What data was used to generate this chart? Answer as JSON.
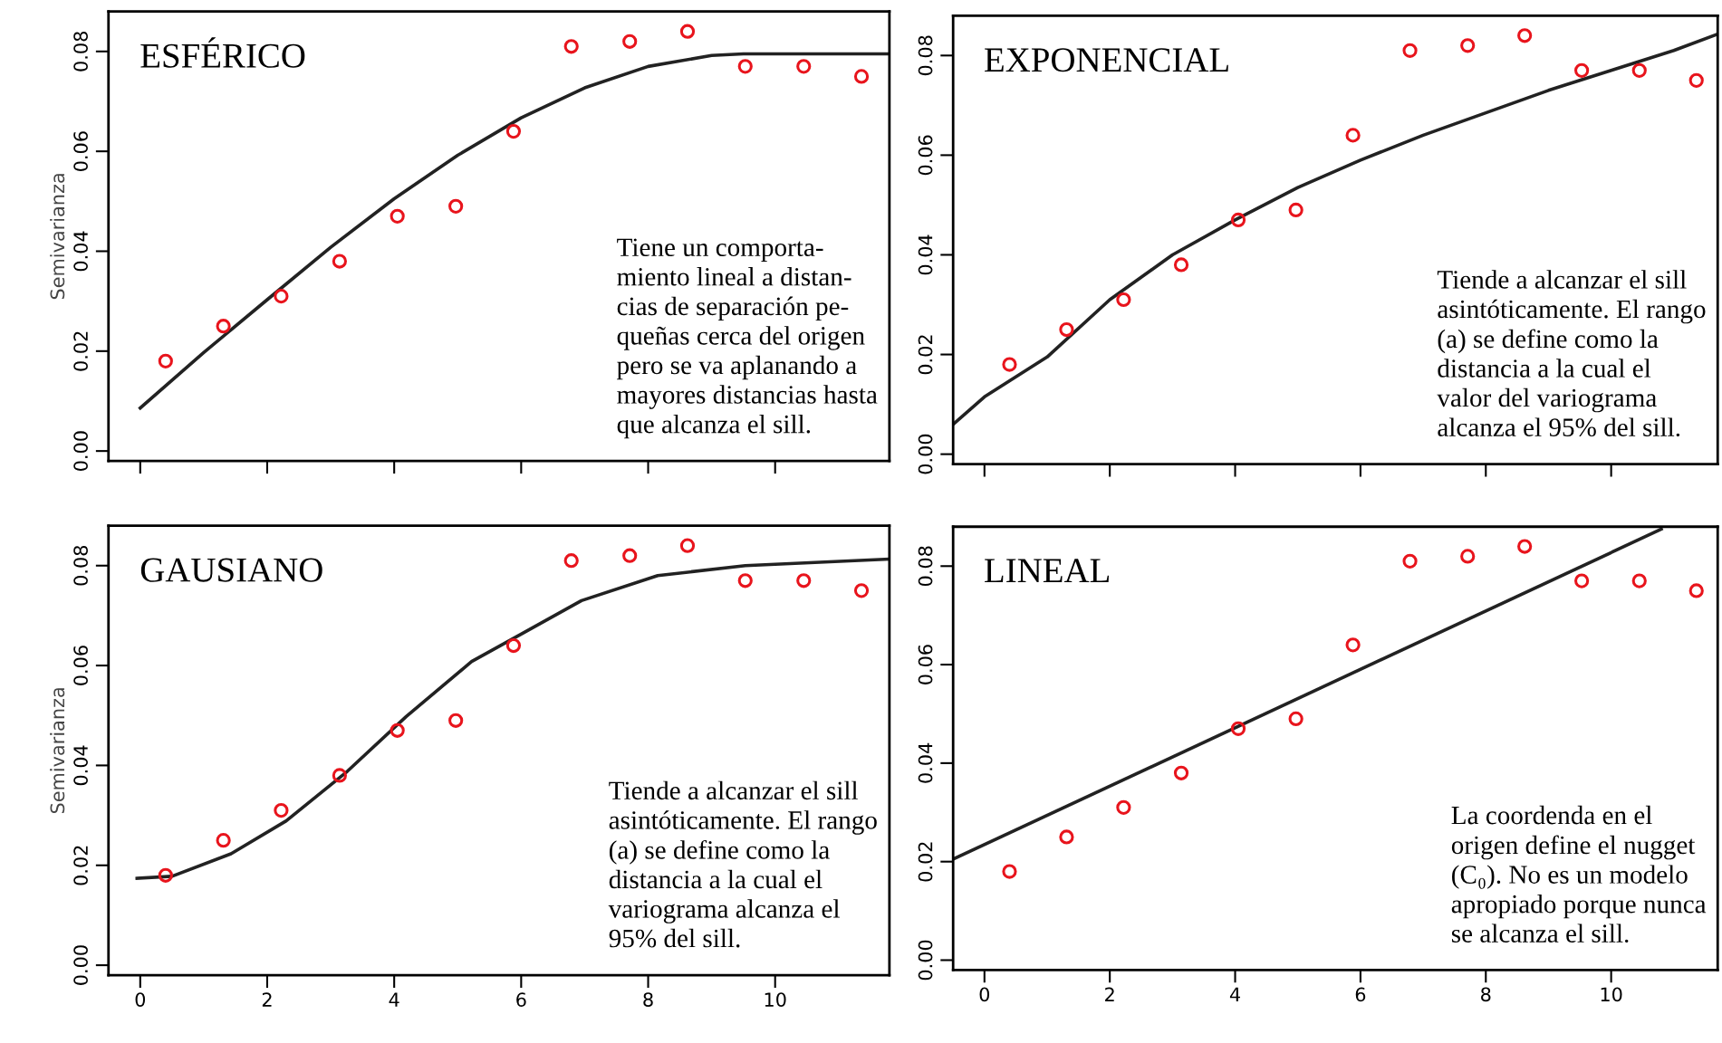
{
  "chart_data": [
    {
      "type": "line",
      "title": "ESFÉRICO",
      "ylabel": "Semivarianza",
      "xlim": [
        -0.5,
        11.8
      ],
      "ylim": [
        -0.002,
        0.088
      ],
      "xticks": [
        0,
        2,
        4,
        6,
        8,
        10
      ],
      "yticks": [
        {
          "value": 0,
          "label": "0.00"
        },
        {
          "value": 0.02,
          "label": "0.02"
        },
        {
          "value": 0.04,
          "label": "0.04"
        },
        {
          "value": 0.06,
          "label": "0.06"
        },
        {
          "value": 0.08,
          "label": "0.08"
        }
      ],
      "tick_labels": "y",
      "annotations": [
        "Tiene un comporta-\nmiento lineal a distan-\ncias de separación pe-\nqueñas cerca del origen\npero se va aplanando a\nmayores distancias hasta\nque alcanza el sill."
      ],
      "series": [
        {
          "type": "scatter",
          "color": "#e8141c",
          "x": [
            0.4,
            1.31,
            2.22,
            3.14,
            4.05,
            4.97,
            5.88,
            6.79,
            7.71,
            8.62,
            9.53,
            10.45,
            11.36
          ],
          "values": [
            0.018,
            0.025,
            0.031,
            0.038,
            0.047,
            0.049,
            0.064,
            0.081,
            0.082,
            0.084,
            0.077,
            0.077,
            0.075
          ]
        },
        {
          "color": "#222222",
          "x": [
            0,
            1,
            2,
            3,
            4,
            5,
            6,
            7,
            8,
            9,
            9.5,
            11.8
          ],
          "values": [
            0.0086,
            0.0197,
            0.0303,
            0.0408,
            0.0505,
            0.0592,
            0.0667,
            0.0727,
            0.077,
            0.0792,
            0.0795,
            0.0795
          ]
        }
      ]
    },
    {
      "type": "line",
      "title": "EXPONENCIAL",
      "xlim": [
        -0.5,
        11.7
      ],
      "ylim": [
        -0.002,
        0.088
      ],
      "xticks": [
        0,
        2,
        4,
        6,
        8,
        10
      ],
      "yticks": [
        {
          "value": 0,
          "label": "0.00"
        },
        {
          "value": 0.02,
          "label": "0.02"
        },
        {
          "value": 0.04,
          "label": "0.04"
        },
        {
          "value": 0.06,
          "label": "0.06"
        },
        {
          "value": 0.08,
          "label": "0.08"
        }
      ],
      "tick_labels": "y",
      "annotations": [
        "Tiende a alcanzar el sill\nasintóticamente. El rango\n(a) se define como la\ndistancia a la cual el\nvalor del variograma\nalcanza el 95% del sill."
      ],
      "series": [
        {
          "type": "scatter",
          "color": "#e8141c",
          "x": [
            0.4,
            1.31,
            2.22,
            3.14,
            4.05,
            4.97,
            5.88,
            6.79,
            7.71,
            8.62,
            9.53,
            10.45,
            11.36
          ],
          "values": [
            0.018,
            0.025,
            0.031,
            0.038,
            0.047,
            0.049,
            0.064,
            0.081,
            0.082,
            0.084,
            0.077,
            0.077,
            0.075
          ]
        },
        {
          "color": "#222222",
          "x": [
            -0.5,
            0,
            1,
            2,
            3,
            4,
            5,
            6,
            7,
            8,
            9,
            10,
            11,
            11.7
          ],
          "values": [
            0.006,
            0.0115,
            0.0195,
            0.031,
            0.04,
            0.047,
            0.0535,
            0.059,
            0.064,
            0.0685,
            0.073,
            0.077,
            0.081,
            0.0843
          ]
        }
      ]
    },
    {
      "type": "line",
      "title": "GAUSIANO",
      "ylabel": "Semivarianza",
      "xlim": [
        -0.5,
        11.8
      ],
      "ylim": [
        -0.002,
        0.088
      ],
      "xticks": [
        0,
        2,
        4,
        6,
        8,
        10
      ],
      "yticks": [
        {
          "value": 0,
          "label": "0.00"
        },
        {
          "value": 0.02,
          "label": "0.02"
        },
        {
          "value": 0.04,
          "label": "0.04"
        },
        {
          "value": 0.06,
          "label": "0.06"
        },
        {
          "value": 0.08,
          "label": "0.08"
        }
      ],
      "annotations": [
        "Tiende a alcanzar el sill\nasintóticamente. El rango\n(a) se define como la\ndistancia a la cual el\nvariograma alcanza el\n95% del sill."
      ],
      "series": [
        {
          "type": "scatter",
          "color": "#e8141c",
          "x": [
            0.4,
            1.31,
            2.22,
            3.14,
            4.05,
            4.97,
            5.88,
            6.79,
            7.71,
            8.62,
            9.53,
            10.45,
            11.36
          ],
          "values": [
            0.018,
            0.025,
            0.031,
            0.038,
            0.047,
            0.049,
            0.064,
            0.081,
            0.082,
            0.084,
            0.077,
            0.077,
            0.075
          ]
        },
        {
          "color": "#222222",
          "x": [
            -0.05,
            0.5,
            1.43,
            2.3,
            3.26,
            4.19,
            5.22,
            6,
            6.95,
            8.15,
            9.53,
            11.8
          ],
          "values": [
            0.0174,
            0.0178,
            0.0223,
            0.0289,
            0.0388,
            0.0498,
            0.0608,
            0.0663,
            0.073,
            0.078,
            0.08,
            0.0813
          ]
        }
      ]
    },
    {
      "type": "line",
      "title": "LINEAL",
      "xlim": [
        -0.5,
        11.7
      ],
      "ylim": [
        -0.002,
        0.088
      ],
      "xticks": [
        0,
        2,
        4,
        6,
        8,
        10
      ],
      "yticks": [
        {
          "value": 0,
          "label": "0.00"
        },
        {
          "value": 0.02,
          "label": "0.02"
        },
        {
          "value": 0.04,
          "label": "0.04"
        },
        {
          "value": 0.06,
          "label": "0.06"
        },
        {
          "value": 0.08,
          "label": "0.08"
        }
      ],
      "annotations": [
        "La coordenda en el\norigen define el nugget\n(C₀). No es un modelo\napropiado porque nunca\nse alcanza el sill."
      ],
      "series": [
        {
          "type": "scatter",
          "color": "#e8141c",
          "x": [
            0.4,
            1.31,
            2.22,
            3.14,
            4.05,
            4.97,
            5.88,
            6.79,
            7.71,
            8.62,
            9.53,
            10.45,
            11.36
          ],
          "values": [
            0.018,
            0.025,
            0.031,
            0.038,
            0.047,
            0.049,
            0.064,
            0.081,
            0.082,
            0.084,
            0.077,
            0.077,
            0.075
          ]
        },
        {
          "color": "#222222",
          "x": [
            -0.5,
            10.8
          ],
          "values": [
            0.0205,
            0.0875
          ]
        }
      ]
    }
  ]
}
